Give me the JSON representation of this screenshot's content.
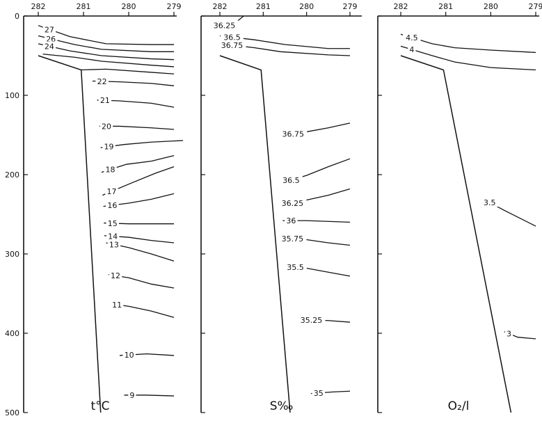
{
  "chart_data": [
    {
      "type": "line",
      "title": "t°C",
      "x_ticks": [
        "282",
        "281",
        "280",
        "279"
      ],
      "y_ticks": [
        "0",
        "100",
        "200",
        "300",
        "400",
        "500"
      ],
      "ylim": [
        0,
        500
      ],
      "bottom_profile": [
        [
          282,
          50
        ],
        [
          281.05,
          68
        ],
        [
          280.62,
          500
        ]
      ],
      "isolines": [
        {
          "label": "27",
          "points": [
            [
              282,
              12
            ],
            [
              281.3,
              26
            ],
            [
              280.5,
              35
            ],
            [
              279.5,
              36
            ],
            [
              279,
              36
            ]
          ]
        },
        {
          "label": "26",
          "points": [
            [
              282,
              25
            ],
            [
              281.2,
              36
            ],
            [
              280.6,
              42
            ],
            [
              279.5,
              45
            ],
            [
              279,
              45
            ]
          ]
        },
        {
          "label": "24",
          "points": [
            [
              282,
              35
            ],
            [
              281.3,
              44
            ],
            [
              280.6,
              50
            ],
            [
              279.5,
              54
            ],
            [
              279,
              55
            ]
          ]
        },
        {
          "label": "",
          "points": [
            [
              281.9,
              48
            ],
            [
              281.2,
              52
            ],
            [
              280.6,
              57
            ],
            [
              279.5,
              62
            ],
            [
              279,
              64
            ]
          ]
        },
        {
          "label": "",
          "points": [
            [
              281.05,
              68
            ],
            [
              280.5,
              67
            ],
            [
              279.5,
              71
            ],
            [
              279,
              73
            ]
          ]
        },
        {
          "label": "22",
          "points": [
            [
              280.8,
              82
            ],
            [
              280.2,
              83
            ],
            [
              279.5,
              85
            ],
            [
              279,
              88
            ]
          ]
        },
        {
          "label": "21",
          "points": [
            [
              280.7,
              106
            ],
            [
              280.2,
              107
            ],
            [
              279.5,
              110
            ],
            [
              279,
              115
            ]
          ]
        },
        {
          "label": "20",
          "points": [
            [
              280.65,
              139
            ],
            [
              280.2,
              139
            ],
            [
              279.5,
              141
            ],
            [
              279,
              143
            ]
          ]
        },
        {
          "label": "19",
          "points": [
            [
              280.62,
              166
            ],
            [
              280.1,
              162
            ],
            [
              279.5,
              159
            ],
            [
              278.8,
              157
            ]
          ]
        },
        {
          "label": "18",
          "points": [
            [
              280.6,
              197
            ],
            [
              280.05,
              187
            ],
            [
              279.5,
              183
            ],
            [
              279,
              176
            ]
          ]
        },
        {
          "label": "17",
          "points": [
            [
              280.58,
              226
            ],
            [
              280,
              212
            ],
            [
              279.4,
              198
            ],
            [
              279,
              190
            ]
          ]
        },
        {
          "label": "16",
          "points": [
            [
              280.56,
              240
            ],
            [
              280,
              236
            ],
            [
              279.5,
              231
            ],
            [
              279,
              224
            ]
          ]
        },
        {
          "label": "15",
          "points": [
            [
              280.55,
              261
            ],
            [
              280,
              262
            ],
            [
              279.5,
              262
            ],
            [
              279,
              262
            ]
          ]
        },
        {
          "label": "14",
          "points": [
            [
              280.54,
              277
            ],
            [
              280,
              279
            ],
            [
              279.5,
              283
            ],
            [
              279,
              286
            ]
          ]
        },
        {
          "label": "13",
          "points": [
            [
              280.5,
              286
            ],
            [
              280,
              292
            ],
            [
              279.5,
              300
            ],
            [
              279,
              309
            ]
          ]
        },
        {
          "label": "12",
          "points": [
            [
              280.45,
              326
            ],
            [
              280,
              330
            ],
            [
              279.5,
              338
            ],
            [
              279,
              343
            ]
          ]
        },
        {
          "label": "11",
          "points": [
            [
              280.4,
              363
            ],
            [
              280,
              366
            ],
            [
              279.5,
              372
            ],
            [
              279,
              380
            ]
          ]
        },
        {
          "label": "10",
          "points": [
            [
              280.2,
              428
            ],
            [
              279.6,
              426
            ],
            [
              279,
              428
            ]
          ]
        },
        {
          "label": "9",
          "points": [
            [
              280.1,
              478
            ],
            [
              279.6,
              478
            ],
            [
              279,
              479
            ]
          ]
        }
      ]
    },
    {
      "type": "line",
      "title": "S‰",
      "x_ticks": [
        "282",
        "281",
        "280",
        "279"
      ],
      "y_ticks": [
        "0",
        "100",
        "200",
        "300",
        "400",
        "500"
      ],
      "ylim": [
        0,
        500
      ],
      "bottom_profile": [
        [
          282,
          50
        ],
        [
          281.05,
          68
        ],
        [
          280.38,
          500
        ]
      ],
      "isolines": [
        {
          "label": "36.25",
          "points": [
            [
              282,
              12
            ],
            [
              281.7,
              11
            ],
            [
              281.45,
              0
            ]
          ]
        },
        {
          "label": "36.5",
          "points": [
            [
              282,
              25
            ],
            [
              281.2,
              30
            ],
            [
              280.5,
              36
            ],
            [
              279.5,
              41
            ],
            [
              279,
              41
            ]
          ]
        },
        {
          "label": "36.75",
          "points": [
            [
              282,
              35
            ],
            [
              281.2,
              40
            ],
            [
              280.6,
              45
            ],
            [
              279.5,
              49
            ],
            [
              279,
              50
            ]
          ]
        },
        {
          "label": "36.75",
          "points": [
            [
              280.48,
              150
            ],
            [
              280,
              146
            ],
            [
              279.5,
              141
            ],
            [
              279,
              135
            ]
          ]
        },
        {
          "label": "36.5",
          "points": [
            [
              280.55,
              210
            ],
            [
              280,
              201
            ],
            [
              279.5,
              190
            ],
            [
              279,
              180
            ]
          ]
        },
        {
          "label": "36.25",
          "points": [
            [
              280.5,
              238
            ],
            [
              280,
              232
            ],
            [
              279.5,
              226
            ],
            [
              279,
              218
            ]
          ]
        },
        {
          "label": "36",
          "points": [
            [
              280.55,
              258
            ],
            [
              280,
              258
            ],
            [
              279.5,
              259
            ],
            [
              279,
              260
            ]
          ]
        },
        {
          "label": "35.75",
          "points": [
            [
              280.5,
              280
            ],
            [
              280,
              282
            ],
            [
              279.5,
              286
            ],
            [
              279,
              289
            ]
          ]
        },
        {
          "label": "35.5",
          "points": [
            [
              280.4,
              316
            ],
            [
              280,
              318
            ],
            [
              279.5,
              323
            ],
            [
              279,
              328
            ]
          ]
        },
        {
          "label": "35.25",
          "points": [
            [
              280.1,
              383
            ],
            [
              279.5,
              384
            ],
            [
              279,
              386
            ]
          ]
        },
        {
          "label": "35",
          "points": [
            [
              279.9,
              476
            ],
            [
              279.4,
              474
            ],
            [
              279,
              473
            ]
          ]
        }
      ]
    },
    {
      "type": "line",
      "title": "O₂/l",
      "x_ticks": [
        "282",
        "281",
        "280",
        "279"
      ],
      "y_ticks": [
        "0",
        "100",
        "200",
        "300",
        "400",
        "500"
      ],
      "ylim": [
        0,
        500
      ],
      "bottom_profile": [
        [
          282,
          50
        ],
        [
          281.05,
          68
        ],
        [
          279.55,
          500
        ]
      ],
      "isolines": [
        {
          "label": "4.5",
          "points": [
            [
              282,
              23
            ],
            [
              281.3,
              35
            ],
            [
              280.8,
              40
            ],
            [
              280,
              43
            ],
            [
              279,
              46
            ]
          ]
        },
        {
          "label": "4",
          "points": [
            [
              282,
              38
            ],
            [
              281.3,
              50
            ],
            [
              280.8,
              58
            ],
            [
              280,
              65
            ],
            [
              279,
              68
            ]
          ]
        },
        {
          "label": "3.5",
          "points": [
            [
              280.2,
              230
            ],
            [
              279.7,
              245
            ],
            [
              279,
              265
            ]
          ]
        },
        {
          "label": "3",
          "points": [
            [
              279.7,
              398
            ],
            [
              279.4,
              405
            ],
            [
              279,
              407
            ]
          ]
        }
      ]
    }
  ]
}
